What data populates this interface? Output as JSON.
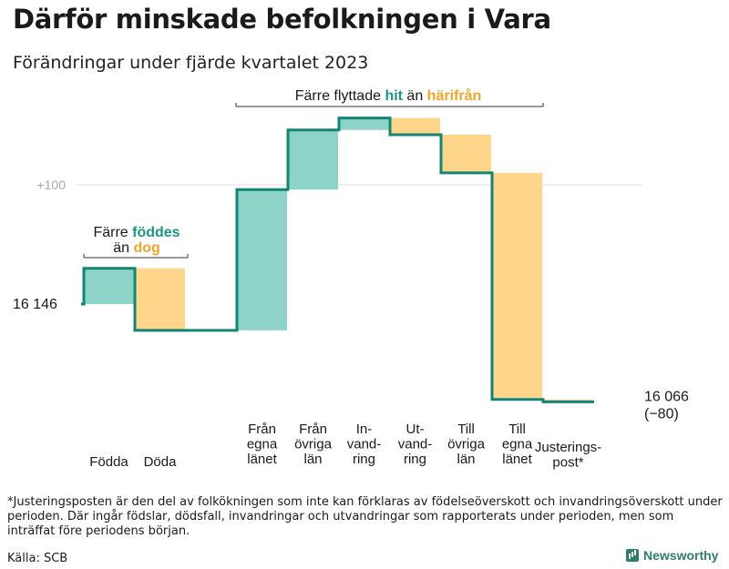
{
  "title": "Därför minskade befolkningen i Vara",
  "subtitle": "Förändringar under fjärde kvartalet 2023",
  "footnote": "*Justeringsposten är den del av folkökningen som inte kan förklaras av födelseöverskott och invandringsöverskott under perioden. Där ingår födslar, dödsfall, invandringar och utvandringar som rapporterats under perioden, men som inträffat före periodens början.",
  "source": "Källa: SCB",
  "brand": "Newsworthy",
  "colors": {
    "increase": "#8dd3c7",
    "decrease": "#fdd58b",
    "line": "#138574",
    "teal_text": "#1a9683",
    "orange_text": "#f0a52a",
    "grid": "#dddddd"
  },
  "chart_data": {
    "type": "waterfall",
    "start_value": 16146,
    "start_label": "16  146",
    "end_value": 16066,
    "end_label": "16 066",
    "end_change_label": "(−80)",
    "y_tick_label": "+100",
    "y_tick_value": 100,
    "steps": [
      {
        "label": [
          "Födda"
        ],
        "value": 30
      },
      {
        "label": [
          "Döda"
        ],
        "value": -52
      },
      {
        "label": [],
        "value": 0
      },
      {
        "label": [
          "Från",
          "egna",
          "länet"
        ],
        "value": 118
      },
      {
        "label": [
          "Från",
          "övriga",
          "län"
        ],
        "value": 50
      },
      {
        "label": [
          "In-",
          "vand-",
          "ring"
        ],
        "value": 10
      },
      {
        "label": [
          "Ut-",
          "vand-",
          "ring"
        ],
        "value": -14
      },
      {
        "label": [
          "Till",
          "övriga",
          "län"
        ],
        "value": -32
      },
      {
        "label": [
          "Till",
          "egna",
          "länet"
        ],
        "value": -190
      },
      {
        "label": [
          "Justerings-",
          "post*"
        ],
        "value": -2
      }
    ],
    "annotations": {
      "births": {
        "line1": "Färre",
        "line1_em": "föddes",
        "line2": "än",
        "line2_em": "dog"
      },
      "migration": {
        "pre": "Färre flyttade",
        "em1": "hit",
        "mid": "än",
        "em2": "härifrån"
      }
    }
  }
}
